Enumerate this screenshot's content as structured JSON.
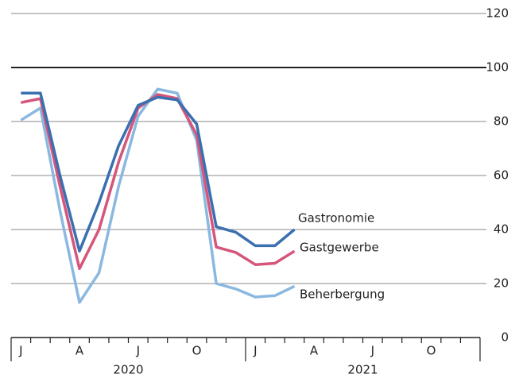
{
  "chart_data": {
    "type": "line",
    "categories": [
      "J",
      null,
      null,
      "A",
      null,
      null,
      "J",
      null,
      null,
      "O",
      null,
      null,
      "J",
      null,
      null,
      "A",
      null,
      null,
      "J",
      null,
      null,
      "O",
      null,
      null
    ],
    "year_groups": [
      "2020",
      "2021"
    ],
    "series": [
      {
        "name": "Gastronomie",
        "color": "#3a6fb0",
        "values": [
          90.5,
          90.5,
          60,
          32,
          50,
          71,
          86,
          89,
          88,
          79,
          41,
          39,
          34,
          34,
          40,
          null,
          null,
          null,
          null,
          null,
          null,
          null,
          null,
          null
        ]
      },
      {
        "name": "Gastgewerbe",
        "color": "#d6557a",
        "values": [
          87,
          88.5,
          56,
          25.5,
          40,
          65,
          85,
          90,
          88.5,
          75,
          33.5,
          31.5,
          27,
          27.5,
          32,
          null,
          null,
          null,
          null,
          null,
          null,
          null,
          null,
          null
        ]
      },
      {
        "name": "Beherbergung",
        "color": "#8ab8e0",
        "values": [
          80.5,
          85,
          47,
          13,
          24,
          56,
          82,
          92,
          90.5,
          73,
          20,
          18,
          15,
          15.5,
          19,
          null,
          null,
          null,
          null,
          null,
          null,
          null,
          null,
          null
        ]
      }
    ],
    "ylim": [
      0,
      120
    ],
    "yticks": [
      0,
      20,
      40,
      60,
      80,
      100,
      120
    ],
    "reference_line": 100,
    "grid": true
  }
}
